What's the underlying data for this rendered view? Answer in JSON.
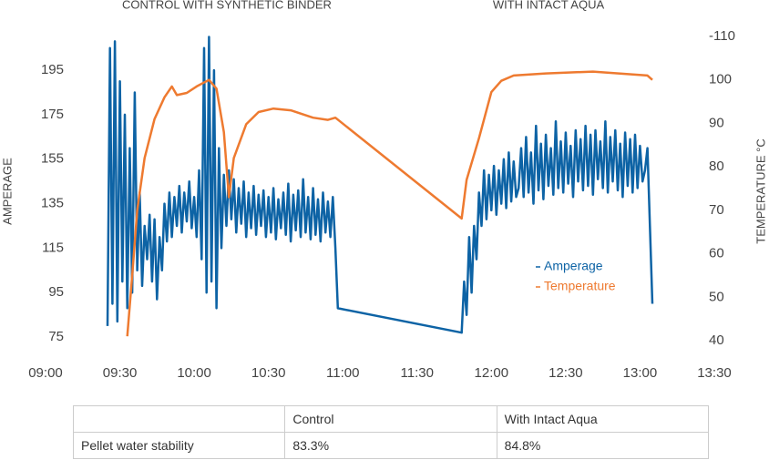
{
  "chart_data": {
    "type": "line",
    "annotations": [
      "CONTROL WITH SYNTHETIC BINDER",
      "WITH INTACT AQUA"
    ],
    "y_label": "AMPERAGE",
    "y2_label": "TEMPERATURE °C",
    "xlim": [
      "09:00",
      "13:30"
    ],
    "xticks": [
      "09:00",
      "09:30",
      "10:00",
      "10:30",
      "11:00",
      "11:30",
      "12:00",
      "12:30",
      "13:00",
      "13:30"
    ],
    "ylim": [
      73.4,
      210.2
    ],
    "yticks": [
      75,
      95,
      115,
      135,
      155,
      175,
      195
    ],
    "y2lim": [
      40,
      110
    ],
    "y2ticks": [
      {
        "value": 110,
        "label": "-110"
      },
      100,
      90,
      80,
      70,
      60,
      50,
      40
    ],
    "legend": "center-right",
    "series": [
      {
        "name": "Amperage",
        "color": "#0d63a5",
        "axis": "y",
        "x": [
          "09:25",
          "09:26",
          "09:27",
          "09:28",
          "09:29",
          "09:30",
          "09:31",
          "09:32",
          "09:33",
          "09:34",
          "09:35",
          "09:36",
          "09:37",
          "09:38",
          "09:39",
          "09:40",
          "09:41",
          "09:42",
          "09:43",
          "09:44",
          "09:45",
          "09:46",
          "09:47",
          "09:48",
          "09:49",
          "09:50",
          "09:51",
          "09:52",
          "09:53",
          "09:54",
          "09:55",
          "09:56",
          "09:57",
          "09:58",
          "09:59",
          "10:00",
          "10:01",
          "10:02",
          "10:03",
          "10:04",
          "10:05",
          "10:06",
          "10:07",
          "10:08",
          "10:09",
          "10:10",
          "10:11",
          "10:12",
          "10:13",
          "10:14",
          "10:15",
          "10:16",
          "10:17",
          "10:18",
          "10:19",
          "10:20",
          "10:21",
          "10:22",
          "10:23",
          "10:24",
          "10:25",
          "10:26",
          "10:27",
          "10:28",
          "10:29",
          "10:30",
          "10:31",
          "10:32",
          "10:33",
          "10:34",
          "10:35",
          "10:36",
          "10:37",
          "10:38",
          "10:39",
          "10:40",
          "10:41",
          "10:42",
          "10:43",
          "10:44",
          "10:45",
          "10:46",
          "10:47",
          "10:48",
          "10:49",
          "10:50",
          "10:51",
          "10:52",
          "10:53",
          "10:54",
          "10:55",
          "10:56",
          "10:57",
          "10:58",
          "11:48",
          "11:49",
          "11:50",
          "11:51",
          "11:52",
          "11:53",
          "11:54",
          "11:55",
          "11:56",
          "11:57",
          "11:58",
          "11:59",
          "12:00",
          "12:01",
          "12:02",
          "12:03",
          "12:04",
          "12:05",
          "12:06",
          "12:07",
          "12:08",
          "12:09",
          "12:10",
          "12:11",
          "12:12",
          "12:13",
          "12:14",
          "12:15",
          "12:16",
          "12:17",
          "12:18",
          "12:19",
          "12:20",
          "12:21",
          "12:22",
          "12:23",
          "12:24",
          "12:25",
          "12:26",
          "12:27",
          "12:28",
          "12:29",
          "12:30",
          "12:31",
          "12:32",
          "12:33",
          "12:34",
          "12:35",
          "12:36",
          "12:37",
          "12:38",
          "12:39",
          "12:40",
          "12:41",
          "12:42",
          "12:43",
          "12:44",
          "12:45",
          "12:46",
          "12:47",
          "12:48",
          "12:49",
          "12:50",
          "12:51",
          "12:52",
          "12:53",
          "12:54",
          "12:55",
          "12:56",
          "12:57",
          "12:58",
          "12:59",
          "13:00",
          "13:01",
          "13:02",
          "13:03",
          "13:04",
          "13:05"
        ],
        "values": [
          80,
          205,
          90,
          208,
          82,
          190,
          100,
          175,
          88,
          160,
          95,
          185,
          105,
          140,
          98,
          125,
          110,
          130,
          100,
          128,
          92,
          120,
          105,
          135,
          118,
          140,
          120,
          138,
          125,
          143,
          122,
          140,
          127,
          145,
          124,
          138,
          120,
          150,
          110,
          205,
          95,
          210,
          100,
          195,
          88,
          160,
          115,
          148,
          125,
          150,
          128,
          146,
          122,
          142,
          126,
          145,
          120,
          140,
          124,
          143,
          121,
          139,
          125,
          141,
          120,
          138,
          122,
          142,
          119,
          137,
          124,
          140,
          121,
          144,
          118,
          139,
          123,
          141,
          120,
          146,
          122,
          138,
          119,
          142,
          121,
          137,
          118,
          140,
          122,
          136,
          120,
          138,
          115,
          88,
          77,
          100,
          85,
          120,
          95,
          125,
          110,
          140,
          125,
          150,
          128,
          148,
          132,
          152,
          130,
          150,
          135,
          155,
          133,
          158,
          136,
          154,
          138,
          142,
          160,
          138,
          165,
          140,
          158,
          135,
          170,
          141,
          162,
          137,
          166,
          143,
          160,
          139,
          172,
          142,
          163,
          140,
          167,
          144,
          161,
          138,
          168,
          145,
          164,
          141,
          170,
          143,
          166,
          139,
          168,
          146,
          163,
          142,
          172,
          140,
          165,
          145,
          168,
          141,
          162,
          138,
          167,
          143,
          164,
          140,
          166,
          142,
          161,
          145,
          150,
          160,
          125,
          90
        ]
      },
      {
        "name": "Temperature",
        "color": "#ee7a30",
        "axis": "y2",
        "x": [
          "09:33",
          "09:35",
          "09:37",
          "09:40",
          "09:44",
          "09:48",
          "09:51",
          "09:53",
          "09:57",
          "10:01",
          "10:06",
          "10:09",
          "10:12",
          "10:14",
          "10:16",
          "10:21",
          "10:26",
          "10:32",
          "10:39",
          "10:48",
          "10:54",
          "10:57",
          "11:48",
          "11:50",
          "11:55",
          "12:00",
          "12:04",
          "12:09",
          "12:22",
          "12:41",
          "13:03",
          "13:05"
        ],
        "values": [
          41,
          55,
          70,
          82,
          91,
          96,
          98.5,
          96.5,
          97,
          98.5,
          100,
          98,
          88,
          73,
          82,
          89.8,
          92.6,
          93.4,
          93,
          91.3,
          90.8,
          91.3,
          68.1,
          77,
          86.6,
          97.2,
          99.8,
          101,
          101.5,
          101.9,
          101,
          100
        ]
      }
    ]
  },
  "table": {
    "columns": [
      "Control",
      "With Intact Aqua"
    ],
    "rows": [
      {
        "label": "Pellet water stability",
        "cells": [
          "83.3%",
          "84.8%"
        ]
      }
    ]
  }
}
